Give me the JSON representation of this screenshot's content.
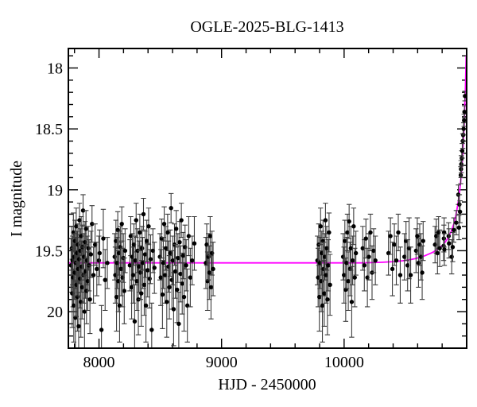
{
  "figure": {
    "background": "#ffffff"
  },
  "colors": {
    "model_curve": "#ff00ff",
    "data_points": "#000000",
    "error_bars": "#3d3d3d",
    "axis": "#000000",
    "text": "#000000"
  },
  "chart_data": {
    "type": "scatter",
    "title": "OGLE-2025-BLG-1413",
    "xlabel": "HJD - 2450000",
    "ylabel": "I magnitude",
    "y_axis_inverted": true,
    "grid": false,
    "legend": null,
    "xlim": [
      7750,
      11000
    ],
    "ylim_top": 17.84,
    "ylim_bottom": 20.3,
    "x_major_ticks": [
      8000,
      9000,
      10000
    ],
    "x_major_labels": [
      "8000",
      "9000",
      "10000"
    ],
    "x_minor_step": 200,
    "y_major_ticks": [
      18,
      18.5,
      19,
      19.5,
      20
    ],
    "y_major_labels": [
      "18",
      "18.5",
      "19",
      "19.5",
      "20"
    ],
    "y_minor_step": 0.1,
    "baseline_magnitude": 19.6,
    "model_curve": [
      [
        7750,
        19.6
      ],
      [
        10150,
        19.6
      ],
      [
        10300,
        19.595
      ],
      [
        10400,
        19.59
      ],
      [
        10500,
        19.58
      ],
      [
        10580,
        19.565
      ],
      [
        10650,
        19.545
      ],
      [
        10720,
        19.515
      ],
      [
        10770,
        19.485
      ],
      [
        10810,
        19.45
      ],
      [
        10845,
        19.4
      ],
      [
        10875,
        19.34
      ],
      [
        10895,
        19.28
      ],
      [
        10912,
        19.21
      ],
      [
        10928,
        19.12
      ],
      [
        10940,
        19.03
      ],
      [
        10950,
        18.94
      ],
      [
        10958,
        18.85
      ],
      [
        10965,
        18.75
      ],
      [
        10971,
        18.64
      ],
      [
        10977,
        18.52
      ],
      [
        10982,
        18.4
      ],
      [
        10986,
        18.28
      ],
      [
        10990,
        18.15
      ],
      [
        10993,
        18.03
      ],
      [
        10996,
        17.9
      ]
    ],
    "points": [
      [
        7772,
        19.62,
        0.22
      ],
      [
        7778,
        19.48,
        0.18
      ],
      [
        7781,
        19.85,
        0.28
      ],
      [
        7784,
        19.58,
        0.2
      ],
      [
        7788,
        19.72,
        0.24
      ],
      [
        7791,
        19.35,
        0.16
      ],
      [
        7794,
        19.95,
        0.3
      ],
      [
        7798,
        19.55,
        0.19
      ],
      [
        7801,
        19.68,
        0.22
      ],
      [
        7804,
        19.42,
        0.17
      ],
      [
        7807,
        20.05,
        0.3
      ],
      [
        7811,
        19.6,
        0.21
      ],
      [
        7814,
        19.3,
        0.15
      ],
      [
        7817,
        19.78,
        0.26
      ],
      [
        7821,
        19.52,
        0.18
      ],
      [
        7824,
        19.88,
        0.28
      ],
      [
        7828,
        19.45,
        0.17
      ],
      [
        7831,
        19.65,
        0.22
      ],
      [
        7834,
        20.12,
        0.28
      ],
      [
        7838,
        19.57,
        0.2
      ],
      [
        7841,
        19.25,
        0.14
      ],
      [
        7845,
        19.73,
        0.24
      ],
      [
        7848,
        19.5,
        0.18
      ],
      [
        7852,
        19.92,
        0.29
      ],
      [
        7855,
        19.38,
        0.16
      ],
      [
        7859,
        19.63,
        0.21
      ],
      [
        7862,
        19.8,
        0.26
      ],
      [
        7866,
        19.47,
        0.18
      ],
      [
        7870,
        19.17,
        0.13
      ],
      [
        7874,
        19.7,
        0.23
      ],
      [
        7878,
        19.55,
        0.19
      ],
      [
        7882,
        20.0,
        0.3
      ],
      [
        7886,
        19.43,
        0.17
      ],
      [
        7890,
        19.67,
        0.22
      ],
      [
        7894,
        19.32,
        0.15
      ],
      [
        7898,
        19.83,
        0.27
      ],
      [
        7903,
        19.58,
        0.2
      ],
      [
        7908,
        19.75,
        0.24
      ],
      [
        7913,
        19.48,
        0.18
      ],
      [
        7919,
        19.62,
        0.21
      ],
      [
        7926,
        19.9,
        0.28
      ],
      [
        7934,
        19.53,
        0.19
      ],
      [
        7943,
        19.28,
        0.15
      ],
      [
        7955,
        19.7,
        0.23
      ],
      [
        7968,
        19.45,
        0.17
      ],
      [
        7982,
        19.65,
        0.22
      ],
      [
        7999,
        19.58,
        0.2
      ],
      [
        8005,
        19.52,
        0.19
      ],
      [
        8020,
        20.15,
        0.2
      ],
      [
        8035,
        19.4,
        0.24
      ],
      [
        8050,
        19.74,
        0.25
      ],
      [
        8068,
        19.6,
        0.21
      ],
      [
        8128,
        19.55,
        0.19
      ],
      [
        8133,
        19.7,
        0.23
      ],
      [
        8138,
        19.42,
        0.17
      ],
      [
        8143,
        19.88,
        0.28
      ],
      [
        8148,
        19.6,
        0.21
      ],
      [
        8153,
        19.33,
        0.15
      ],
      [
        8158,
        19.75,
        0.25
      ],
      [
        8163,
        19.52,
        0.18
      ],
      [
        8168,
        19.95,
        0.3
      ],
      [
        8174,
        19.47,
        0.17
      ],
      [
        8180,
        19.65,
        0.22
      ],
      [
        8186,
        19.28,
        0.14
      ],
      [
        8192,
        19.72,
        0.24
      ],
      [
        8199,
        19.56,
        0.2
      ],
      [
        8206,
        19.83,
        0.27
      ],
      [
        8213,
        19.5,
        0.18
      ],
      [
        8252,
        19.62,
        0.21
      ],
      [
        8259,
        19.38,
        0.16
      ],
      [
        8266,
        19.8,
        0.26
      ],
      [
        8272,
        19.55,
        0.19
      ],
      [
        8279,
        19.7,
        0.23
      ],
      [
        8285,
        19.45,
        0.17
      ],
      [
        8291,
        20.08,
        0.3
      ],
      [
        8297,
        19.58,
        0.2
      ],
      [
        8303,
        19.25,
        0.14
      ],
      [
        8309,
        19.75,
        0.24
      ],
      [
        8315,
        19.5,
        0.18
      ],
      [
        8321,
        19.9,
        0.29
      ],
      [
        8327,
        19.63,
        0.21
      ],
      [
        8333,
        19.35,
        0.15
      ],
      [
        8339,
        19.68,
        0.22
      ],
      [
        8345,
        19.85,
        0.27
      ],
      [
        8351,
        19.48,
        0.18
      ],
      [
        8357,
        19.6,
        0.21
      ],
      [
        8363,
        19.2,
        0.13
      ],
      [
        8369,
        19.78,
        0.25
      ],
      [
        8376,
        19.53,
        0.19
      ],
      [
        8383,
        19.95,
        0.3
      ],
      [
        8390,
        19.42,
        0.17
      ],
      [
        8397,
        19.66,
        0.22
      ],
      [
        8405,
        19.3,
        0.15
      ],
      [
        8413,
        19.73,
        0.24
      ],
      [
        8421,
        19.57,
        0.2
      ],
      [
        8430,
        20.15,
        0.22
      ],
      [
        8440,
        19.5,
        0.18
      ],
      [
        8452,
        19.64,
        0.21
      ],
      [
        8497,
        19.55,
        0.19
      ],
      [
        8504,
        19.72,
        0.23
      ],
      [
        8511,
        19.4,
        0.16
      ],
      [
        8518,
        19.86,
        0.28
      ],
      [
        8525,
        19.6,
        0.21
      ],
      [
        8532,
        19.28,
        0.14
      ],
      [
        8539,
        19.7,
        0.23
      ],
      [
        8546,
        19.48,
        0.18
      ],
      [
        8553,
        19.92,
        0.29
      ],
      [
        8560,
        19.35,
        0.15
      ],
      [
        8567,
        19.63,
        0.21
      ],
      [
        8574,
        19.8,
        0.26
      ],
      [
        8581,
        19.52,
        0.19
      ],
      [
        8588,
        19.15,
        0.12
      ],
      [
        8595,
        19.74,
        0.24
      ],
      [
        8602,
        19.58,
        0.2
      ],
      [
        8609,
        19.98,
        0.3
      ],
      [
        8616,
        19.45,
        0.17
      ],
      [
        8623,
        19.67,
        0.22
      ],
      [
        8630,
        19.32,
        0.15
      ],
      [
        8637,
        19.82,
        0.27
      ],
      [
        8644,
        19.56,
        0.2
      ],
      [
        8651,
        20.1,
        0.26
      ],
      [
        8658,
        19.43,
        0.17
      ],
      [
        8665,
        19.69,
        0.23
      ],
      [
        8672,
        19.25,
        0.14
      ],
      [
        8679,
        19.77,
        0.25
      ],
      [
        8686,
        19.54,
        0.19
      ],
      [
        8694,
        19.88,
        0.28
      ],
      [
        8702,
        19.47,
        0.18
      ],
      [
        8711,
        19.62,
        0.21
      ],
      [
        8721,
        19.95,
        0.3
      ],
      [
        8732,
        19.38,
        0.16
      ],
      [
        8745,
        19.72,
        0.24
      ],
      [
        8760,
        19.58,
        0.2
      ],
      [
        8778,
        19.44,
        0.22
      ],
      [
        8872,
        19.6,
        0.21
      ],
      [
        8879,
        19.45,
        0.17
      ],
      [
        8886,
        19.75,
        0.24
      ],
      [
        8893,
        19.55,
        0.19
      ],
      [
        8900,
        19.68,
        0.22
      ],
      [
        8907,
        19.38,
        0.16
      ],
      [
        8914,
        19.8,
        0.26
      ],
      [
        8922,
        19.52,
        0.18
      ],
      [
        8931,
        19.65,
        0.22
      ],
      [
        9782,
        19.58,
        0.2
      ],
      [
        9788,
        19.72,
        0.24
      ],
      [
        9793,
        19.45,
        0.17
      ],
      [
        9798,
        19.88,
        0.28
      ],
      [
        9803,
        19.6,
        0.21
      ],
      [
        9808,
        19.3,
        0.15
      ],
      [
        9813,
        19.75,
        0.25
      ],
      [
        9818,
        19.52,
        0.18
      ],
      [
        9823,
        19.95,
        0.3
      ],
      [
        9828,
        19.42,
        0.17
      ],
      [
        9833,
        19.65,
        0.22
      ],
      [
        9838,
        19.85,
        0.27
      ],
      [
        9843,
        19.55,
        0.19
      ],
      [
        9848,
        19.25,
        0.14
      ],
      [
        9853,
        19.7,
        0.23
      ],
      [
        9858,
        19.48,
        0.18
      ],
      [
        9864,
        19.9,
        0.29
      ],
      [
        9870,
        19.62,
        0.21
      ],
      [
        9877,
        19.35,
        0.16
      ],
      [
        9885,
        19.78,
        0.25
      ],
      [
        9992,
        19.55,
        0.19
      ],
      [
        9999,
        19.7,
        0.23
      ],
      [
        10006,
        19.42,
        0.17
      ],
      [
        10013,
        19.82,
        0.26
      ],
      [
        10020,
        19.6,
        0.21
      ],
      [
        10027,
        19.35,
        0.15
      ],
      [
        10034,
        19.75,
        0.24
      ],
      [
        10041,
        19.26,
        0.14
      ],
      [
        10048,
        19.65,
        0.22
      ],
      [
        10055,
        19.48,
        0.18
      ],
      [
        10062,
        19.92,
        0.29
      ],
      [
        10070,
        19.58,
        0.2
      ],
      [
        10078,
        19.3,
        0.15
      ],
      [
        10087,
        19.72,
        0.24
      ],
      [
        10096,
        19.52,
        0.18
      ],
      [
        10152,
        19.48,
        0.18
      ],
      [
        10165,
        19.62,
        0.21
      ],
      [
        10178,
        19.4,
        0.16
      ],
      [
        10190,
        19.72,
        0.24
      ],
      [
        10202,
        19.55,
        0.19
      ],
      [
        10215,
        19.35,
        0.15
      ],
      [
        10228,
        19.68,
        0.22
      ],
      [
        10241,
        19.5,
        0.18
      ],
      [
        10255,
        19.58,
        0.2
      ],
      [
        10362,
        19.52,
        0.18
      ],
      [
        10378,
        19.38,
        0.15
      ],
      [
        10394,
        19.65,
        0.22
      ],
      [
        10410,
        19.45,
        0.17
      ],
      [
        10426,
        19.58,
        0.2
      ],
      [
        10442,
        19.35,
        0.15
      ],
      [
        10458,
        19.7,
        0.23
      ],
      [
        10492,
        19.55,
        0.19
      ],
      [
        10505,
        19.42,
        0.16
      ],
      [
        10518,
        19.62,
        0.21
      ],
      [
        10530,
        19.48,
        0.25
      ],
      [
        10543,
        19.7,
        0.23
      ],
      [
        10587,
        19.5,
        0.18
      ],
      [
        10597,
        19.38,
        0.15
      ],
      [
        10607,
        19.6,
        0.2
      ],
      [
        10617,
        19.45,
        0.17
      ],
      [
        10627,
        19.55,
        0.19
      ],
      [
        10637,
        19.68,
        0.22
      ],
      [
        10645,
        19.42,
        0.16
      ],
      [
        10742,
        19.45,
        0.15
      ],
      [
        10752,
        19.38,
        0.14
      ],
      [
        10762,
        19.52,
        0.17
      ],
      [
        10771,
        19.35,
        0.13
      ],
      [
        10780,
        19.48,
        0.15
      ],
      [
        10812,
        19.46,
        0.12
      ],
      [
        10814,
        19.4,
        0.11
      ],
      [
        10816,
        19.35,
        0.12
      ],
      [
        10818,
        19.49,
        0.13
      ],
      [
        10853,
        19.38,
        0.11
      ],
      [
        10856,
        19.44,
        0.12
      ],
      [
        10878,
        19.55,
        0.14
      ],
      [
        10886,
        19.47,
        0.12
      ],
      [
        10895,
        19.33,
        0.1
      ],
      [
        10915,
        19.27,
        0.1
      ],
      [
        10932,
        19.04,
        0.08
      ],
      [
        10937,
        19.31,
        0.1
      ],
      [
        10941,
        19.12,
        0.08
      ],
      [
        10946,
        19.18,
        0.09
      ],
      [
        10952,
        18.88,
        0.07
      ],
      [
        10954,
        18.83,
        0.07
      ],
      [
        10956,
        18.79,
        0.07
      ],
      [
        10960,
        18.74,
        0.06
      ],
      [
        10964,
        18.68,
        0.06
      ],
      [
        10968,
        18.6,
        0.06
      ],
      [
        10971,
        18.55,
        0.05
      ],
      [
        10975,
        18.5,
        0.05
      ],
      [
        10979,
        18.43,
        0.05
      ],
      [
        10982,
        18.36,
        0.05
      ],
      [
        10986,
        18.23,
        0.04
      ]
    ]
  }
}
